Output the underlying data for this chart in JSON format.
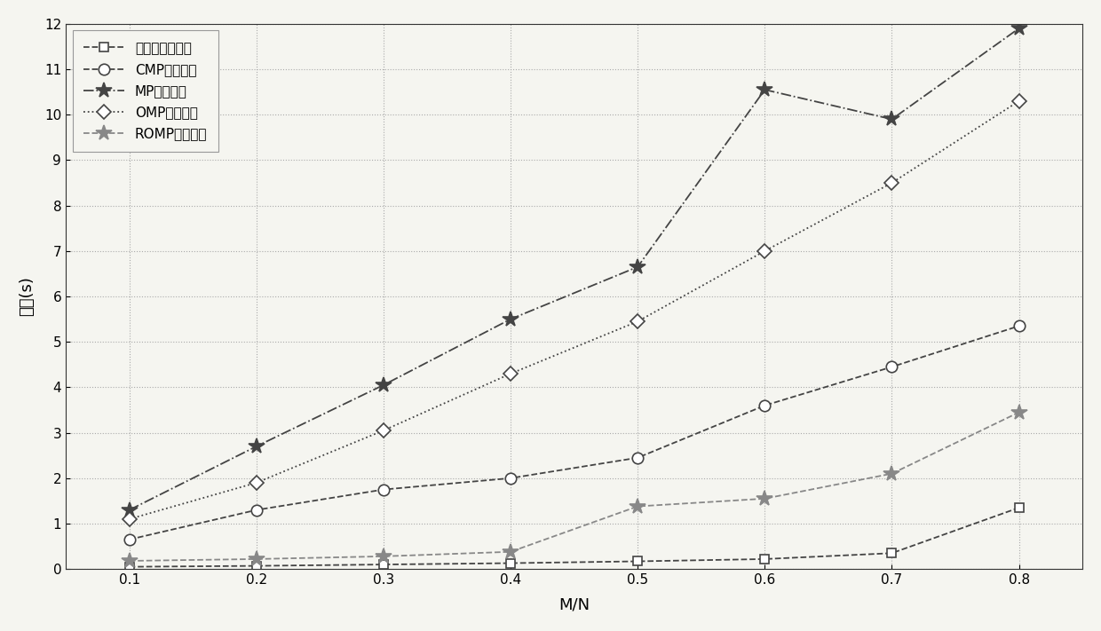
{
  "x": [
    0.1,
    0.2,
    0.3,
    0.4,
    0.5,
    0.6,
    0.7,
    0.8
  ],
  "series": [
    {
      "label": "本发明方法时间",
      "y": [
        0.05,
        0.07,
        0.1,
        0.13,
        0.17,
        0.22,
        0.35,
        1.35
      ],
      "marker": "s",
      "linestyle": "--",
      "color": "#444444",
      "markersize": 7,
      "markerfacecolor": "white"
    },
    {
      "label": "CMP方法时间",
      "y": [
        0.65,
        1.3,
        1.75,
        2.0,
        2.45,
        3.6,
        4.45,
        5.35
      ],
      "marker": "o",
      "linestyle": "--",
      "color": "#444444",
      "markersize": 9,
      "markerfacecolor": "white"
    },
    {
      "label": "MP方法时间",
      "y": [
        1.3,
        2.7,
        4.05,
        5.5,
        6.65,
        10.55,
        9.9,
        11.9
      ],
      "marker": "*",
      "linestyle": "-.",
      "color": "#444444",
      "markersize": 13,
      "markerfacecolor": "#444444"
    },
    {
      "label": "OMP方法时间",
      "y": [
        1.1,
        1.9,
        3.05,
        4.3,
        5.45,
        7.0,
        8.5,
        10.3
      ],
      "marker": "D",
      "linestyle": ":",
      "color": "#444444",
      "markersize": 8,
      "markerfacecolor": "white"
    },
    {
      "label": "ROMP方法时间",
      "y": [
        0.18,
        0.22,
        0.28,
        0.38,
        1.38,
        1.55,
        2.1,
        3.45
      ],
      "marker": "*",
      "linestyle": "--",
      "color": "#888888",
      "markersize": 13,
      "markerfacecolor": "#888888"
    }
  ],
  "xlabel": "M/N",
  "ylabel": "时间(s)",
  "xlim": [
    0.05,
    0.85
  ],
  "ylim": [
    0,
    12
  ],
  "yticks": [
    0,
    1,
    2,
    3,
    4,
    5,
    6,
    7,
    8,
    9,
    10,
    11,
    12
  ],
  "xticks": [
    0.1,
    0.2,
    0.3,
    0.4,
    0.5,
    0.6,
    0.7,
    0.8
  ],
  "background_color": "#f5f5f0",
  "grid_color": "#aaaaaa"
}
